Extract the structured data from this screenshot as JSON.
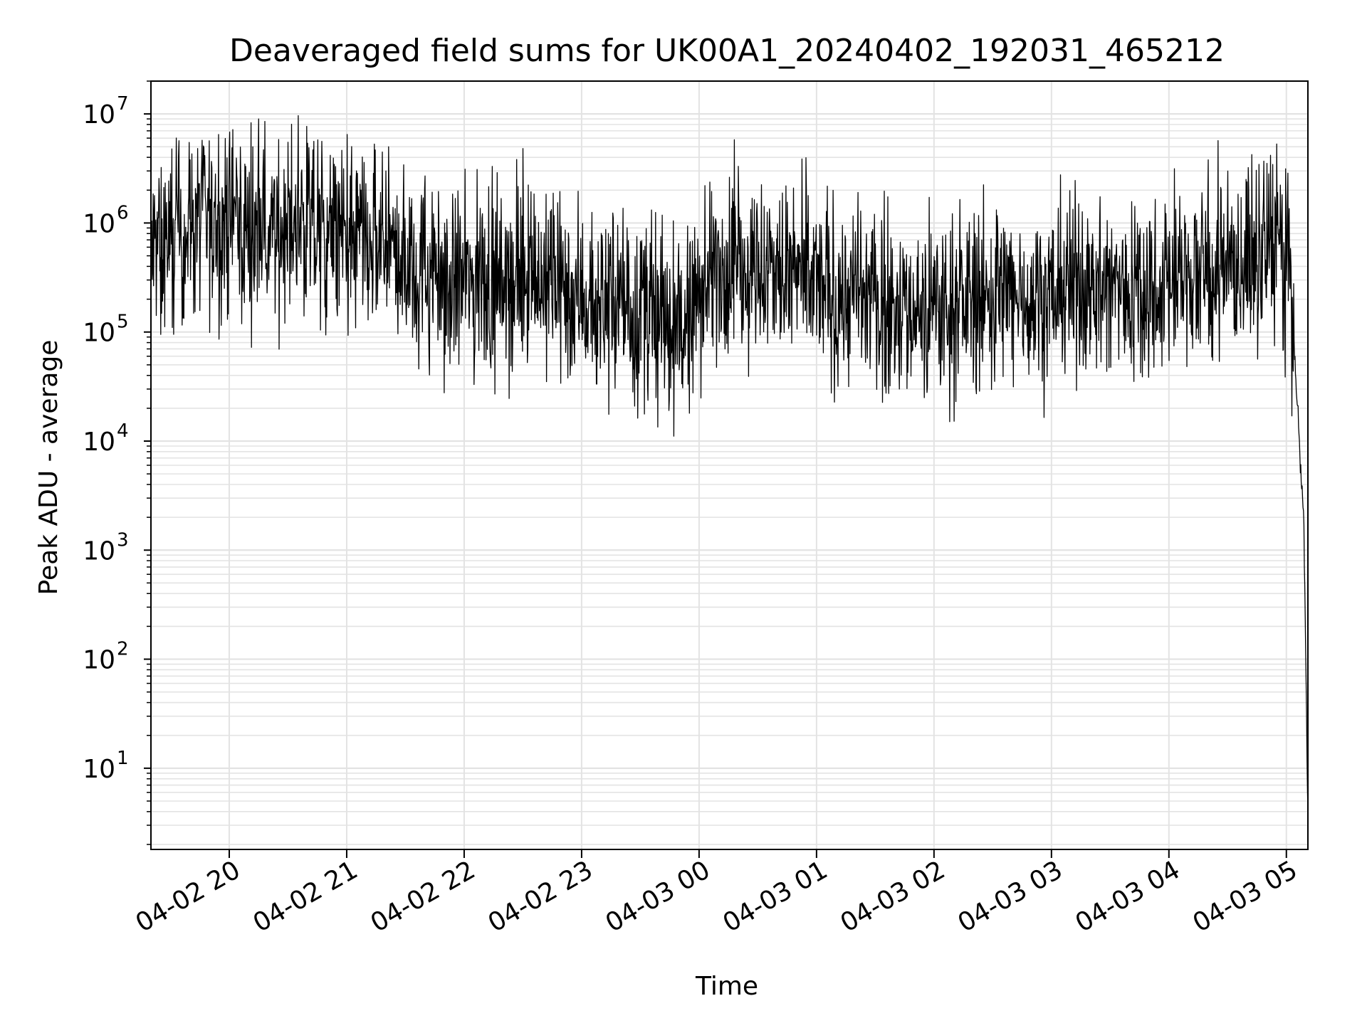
{
  "colors": {
    "background": "#ffffff",
    "series_line": "#000000",
    "grid": "#e3e3e3",
    "axes": "#000000"
  },
  "chart_data": {
    "type": "line",
    "title": "Deaveraged field sums for UK00A1_20240402_192031_465212",
    "xlabel": "Time",
    "ylabel": "Peak ADU - average",
    "yscale": "log",
    "grid": true,
    "xlim": [
      "2024-04-02 19:20",
      "2024-04-03 05:11"
    ],
    "ylim": [
      1.8,
      20000000
    ],
    "x_ticks": [
      "04-02 20",
      "04-02 21",
      "04-02 22",
      "04-02 23",
      "04-03 00",
      "04-03 01",
      "04-03 02",
      "04-03 03",
      "04-03 04",
      "04-03 05"
    ],
    "y_ticks": [
      {
        "value": 10,
        "base": "10",
        "exp": "1"
      },
      {
        "value": 100,
        "base": "10",
        "exp": "2"
      },
      {
        "value": 1000,
        "base": "10",
        "exp": "3"
      },
      {
        "value": 10000,
        "base": "10",
        "exp": "4"
      },
      {
        "value": 100000,
        "base": "10",
        "exp": "5"
      },
      {
        "value": 1000000,
        "base": "10",
        "exp": "6"
      },
      {
        "value": 10000000,
        "base": "10",
        "exp": "7"
      }
    ],
    "series": [
      {
        "baseline_log10": [
          {
            "t": "2024-04-02 19:20",
            "v": 5.7
          },
          {
            "t": "2024-04-02 19:45",
            "v": 6.02
          },
          {
            "t": "2024-04-02 20:10",
            "v": 5.95
          },
          {
            "t": "2024-04-02 20:40",
            "v": 5.92
          },
          {
            "t": "2024-04-02 21:20",
            "v": 5.75
          },
          {
            "t": "2024-04-02 21:40",
            "v": 5.55
          },
          {
            "t": "2024-04-02 22:00",
            "v": 5.45
          },
          {
            "t": "2024-04-02 22:30",
            "v": 5.55
          },
          {
            "t": "2024-04-02 23:15",
            "v": 5.25
          },
          {
            "t": "2024-04-02 23:50",
            "v": 5.0
          },
          {
            "t": "2024-04-03 00:10",
            "v": 5.65
          },
          {
            "t": "2024-04-03 00:40",
            "v": 5.55
          },
          {
            "t": "2024-04-03 01:10",
            "v": 5.35
          },
          {
            "t": "2024-04-03 01:50",
            "v": 5.2
          },
          {
            "t": "2024-04-03 02:20",
            "v": 5.3
          },
          {
            "t": "2024-04-03 03:00",
            "v": 5.4
          },
          {
            "t": "2024-04-03 03:40",
            "v": 5.42
          },
          {
            "t": "2024-04-03 04:30",
            "v": 5.55
          },
          {
            "t": "2024-04-03 04:58",
            "v": 5.85
          },
          {
            "t": "2024-04-03 05:02",
            "v": 5.5
          },
          {
            "t": "2024-04-03 05:06",
            "v": 4.2
          },
          {
            "t": "2024-04-03 05:09",
            "v": 3.2
          },
          {
            "t": "2024-04-03 05:11",
            "v": 0.55
          }
        ],
        "noise_log10": 0.42,
        "peaks": [
          {
            "t": "2024-04-02 20:15",
            "v": 9000000
          },
          {
            "t": "2024-04-02 20:30",
            "v": 5500000
          },
          {
            "t": "2024-04-02 20:00",
            "v": 4700000
          },
          {
            "t": "2024-04-02 19:40",
            "v": 3800000
          },
          {
            "t": "2024-04-02 21:20",
            "v": 3000000
          },
          {
            "t": "2024-04-02 21:40",
            "v": 2700000
          },
          {
            "t": "2024-04-03 00:18",
            "v": 5800000
          },
          {
            "t": "2024-04-03 04:25",
            "v": 5700000
          },
          {
            "t": "2024-04-03 04:55",
            "v": 5300000
          },
          {
            "t": "2024-04-03 04:20",
            "v": 3800000
          }
        ],
        "troughs": [
          {
            "t": "2024-04-02 19:25",
            "v": 95000
          },
          {
            "t": "2024-04-02 22:05",
            "v": 33000
          },
          {
            "t": "2024-04-02 23:38",
            "v": 25000
          },
          {
            "t": "2024-04-02 23:55",
            "v": 18000
          },
          {
            "t": "2024-04-03 01:55",
            "v": 25000
          },
          {
            "t": "2024-04-03 02:05",
            "v": 40000
          }
        ]
      }
    ]
  }
}
